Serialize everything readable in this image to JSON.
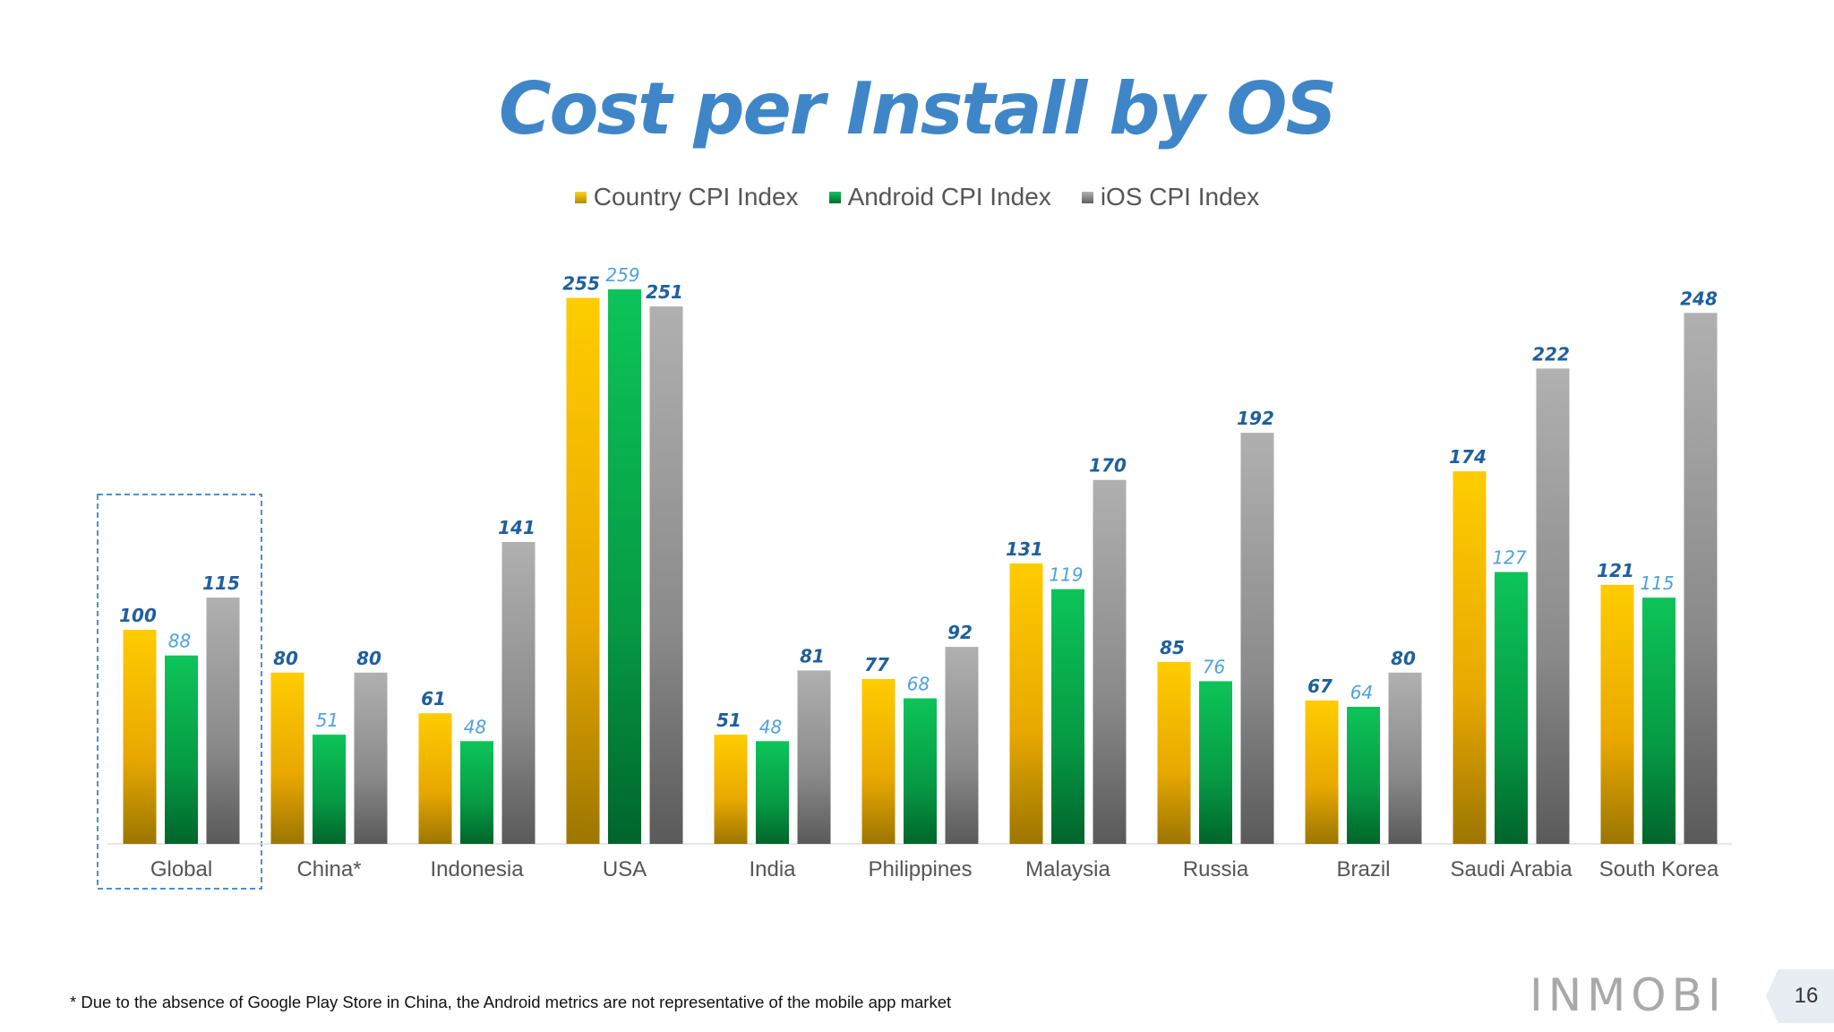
{
  "title": "Cost per Install by OS",
  "footnote": "* Due to the absence of Google Play Store in China, the Android metrics are not representative of the mobile app market",
  "logo_text": "INMOBI",
  "page_number": "16",
  "colors": {
    "title": "#3f86c8",
    "country": "#f4b400",
    "android": "#0a9e46",
    "ios": "#8c8c8c",
    "label_dark": "#1f5f9c",
    "label_light": "#4da2e0",
    "highlight_border": "#4a90d0"
  },
  "legend": [
    {
      "label": "Country CPI Index",
      "color": "#f4b400"
    },
    {
      "label": "Android CPI Index",
      "color": "#0a9e46"
    },
    {
      "label": "iOS CPI Index",
      "color": "#8c8c8c"
    }
  ],
  "chart_data": {
    "type": "bar",
    "title": "Cost per Install by OS",
    "categories": [
      "Global",
      "China*",
      "Indonesia",
      "USA",
      "India",
      "Philippines",
      "Malaysia",
      "Russia",
      "Brazil",
      "Saudi Arabia",
      "South Korea"
    ],
    "series": [
      {
        "name": "Country CPI Index",
        "values": [
          100,
          80,
          61,
          255,
          51,
          77,
          131,
          85,
          67,
          174,
          121
        ]
      },
      {
        "name": "Android CPI Index",
        "values": [
          88,
          51,
          48,
          259,
          48,
          68,
          119,
          76,
          64,
          127,
          115
        ]
      },
      {
        "name": "iOS CPI Index",
        "values": [
          115,
          80,
          141,
          251,
          81,
          92,
          170,
          192,
          80,
          222,
          248
        ]
      }
    ],
    "ylim": [
      0,
      260
    ],
    "grid": false,
    "legend_position": "top-center",
    "highlighted_category": "Global"
  }
}
